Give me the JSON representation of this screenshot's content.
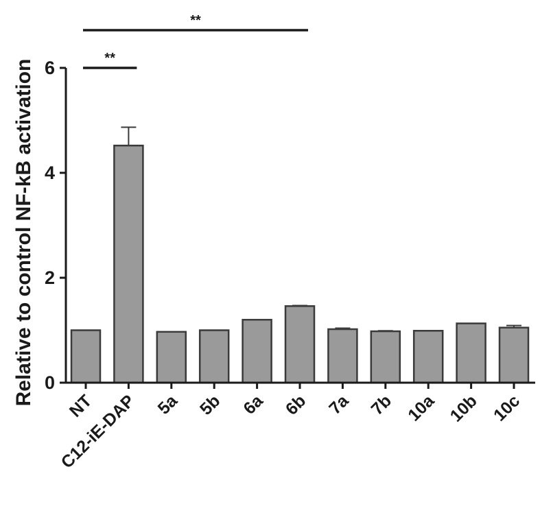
{
  "chart_data": {
    "type": "bar",
    "title": "",
    "xlabel": "",
    "ylabel": "Relative to control NF-kB activation",
    "ylim": [
      0,
      6
    ],
    "yticks": [
      0,
      2,
      4,
      6
    ],
    "grid": false,
    "legend": "none",
    "categories": [
      "NT",
      "C12-iE-DAP",
      "5a",
      "5b",
      "6a",
      "6b",
      "7a",
      "7b",
      "10a",
      "10b",
      "10c"
    ],
    "values": [
      1.0,
      4.52,
      0.97,
      1.0,
      1.2,
      1.46,
      1.02,
      0.98,
      0.99,
      1.13,
      1.05
    ],
    "errors": [
      0.0,
      0.35,
      0.0,
      0.0,
      0.0,
      0.01,
      0.02,
      0.01,
      0.0,
      0.0,
      0.04
    ],
    "bar_color": "#9a9a9a",
    "bar_edge_color": "#3a3a3a",
    "significance": [
      {
        "from": "NT",
        "to": "C12-iE-DAP",
        "label": "**"
      },
      {
        "from": "NT",
        "to": "6b",
        "label": "**"
      }
    ]
  }
}
